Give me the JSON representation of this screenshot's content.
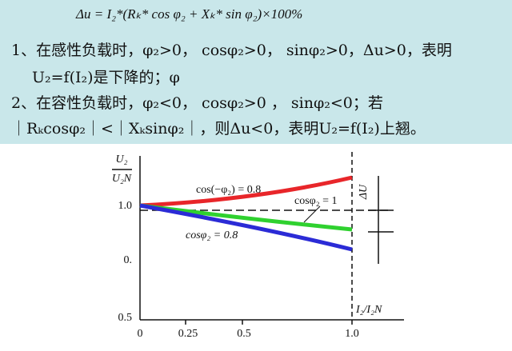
{
  "text": {
    "formula": "Δu = I₂*(Rₖ* cos φ₂ + Xₖ* sin φ₂)×100%",
    "lines": [
      "1、在感性负载时，φ₂>0， cosφ₂>0， sinφ₂>0，Δu>0，表明",
      "U₂=f(I₂)是下降的；φ",
      "2、在容性负载时，φ₂<0， cosφ₂>0 ， sinφ₂<0；若",
      "｜Rₖcosφ₂｜<｜Xₖsinφ₂｜，则Δu<0，表明U₂=f(I₂)上翘。"
    ]
  },
  "figure": {
    "y_label_top": "U₂",
    "y_label_bottom": "U₂N",
    "x_label": "I₂/I₂N",
    "x_ticks": [
      "0",
      "0.25",
      "0.5",
      "1.0"
    ],
    "y_ticks": [
      "1.0",
      "0.",
      "0.5"
    ],
    "curve_labels": [
      "cos(−φ₂) = 0.8",
      "cosφ₂ = 1",
      "cosφ₂ = 0.8"
    ],
    "delta_label": "ΔU"
  }
}
